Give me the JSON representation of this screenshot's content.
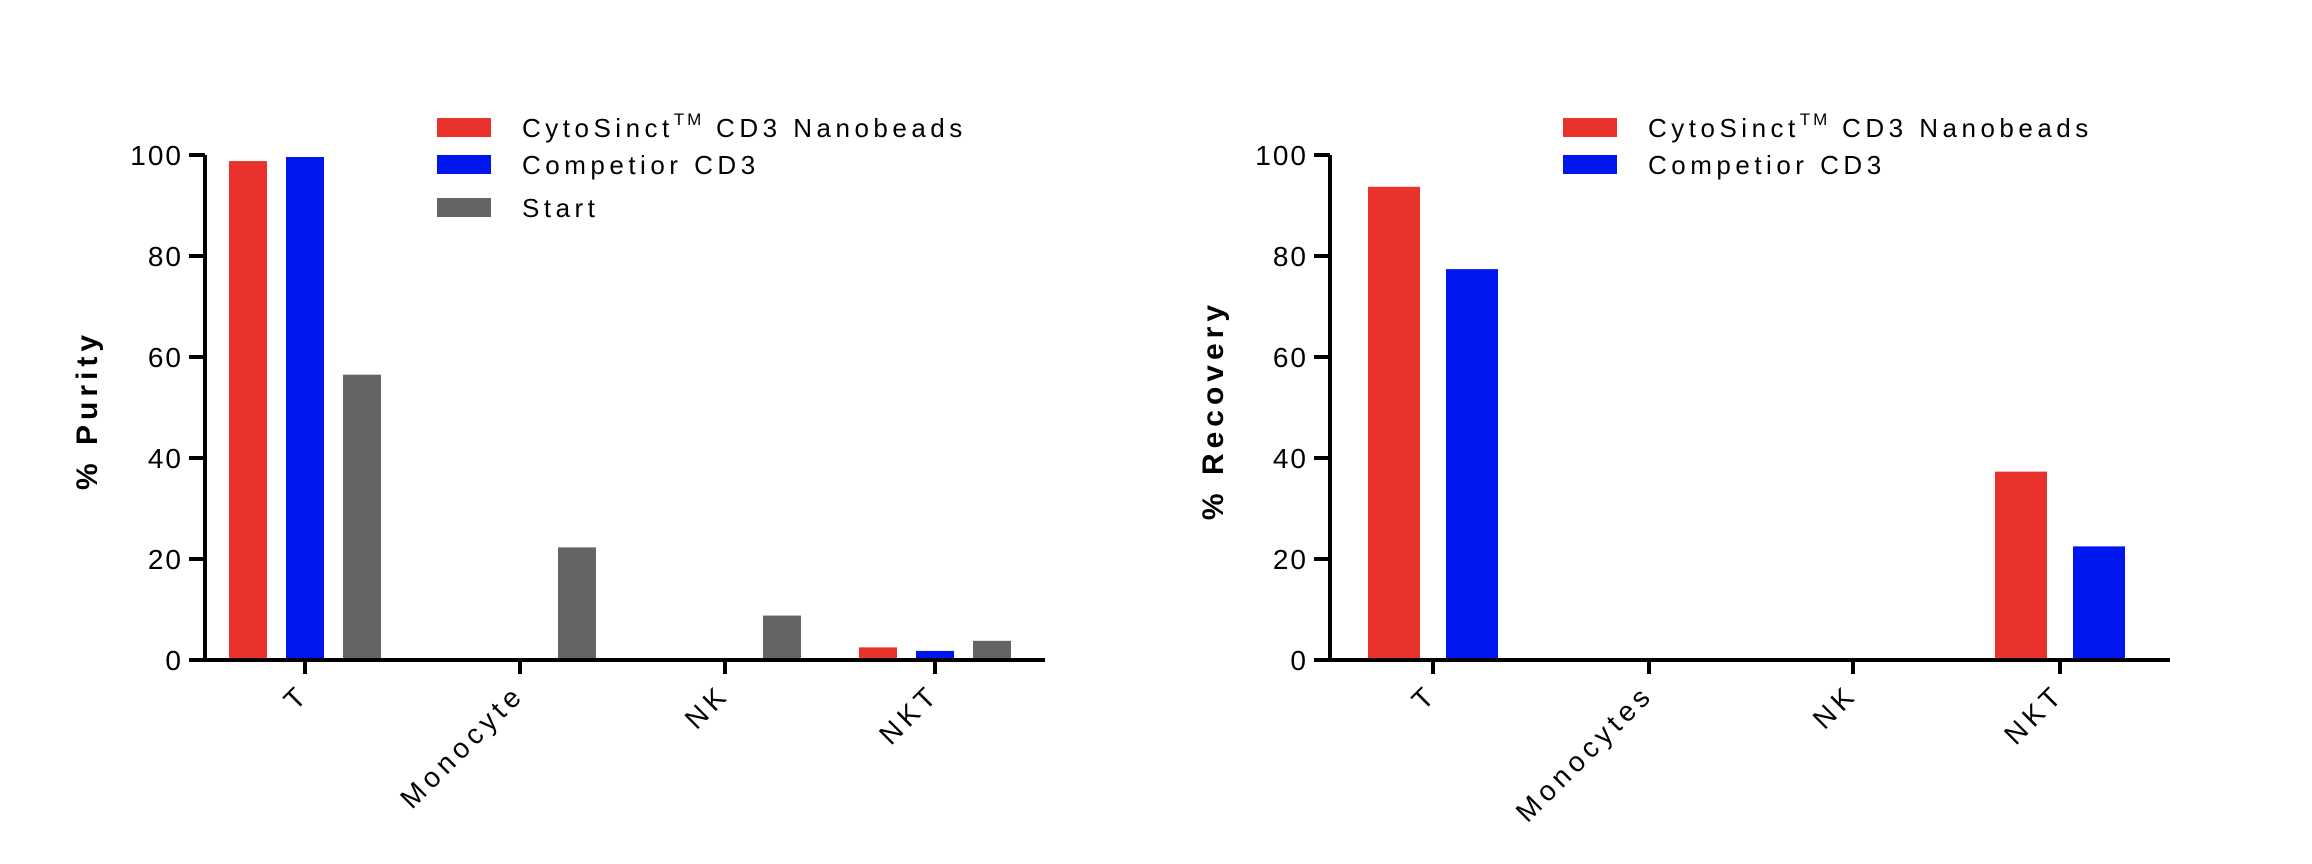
{
  "chart_data": [
    {
      "type": "bar",
      "title": "",
      "xlabel": "",
      "ylabel": "% Purity",
      "ylim": [
        0,
        100
      ],
      "yticks": [
        0,
        20,
        40,
        60,
        80,
        100
      ],
      "grid": false,
      "legend_position": "top-right",
      "categories": [
        "T",
        "Monocyte",
        "NK",
        "NKT"
      ],
      "series": [
        {
          "name": "CytoSinct",
          "name_superscript": "TM",
          "name_suffix": " CD3 Nanobeads",
          "color": "#e8322b",
          "values": [
            98.8,
            0,
            0,
            2.5
          ]
        },
        {
          "name": "Competior CD3",
          "color": "#0016ef",
          "values": [
            99.6,
            0,
            0,
            1.8
          ]
        },
        {
          "name": "Start",
          "color": "#646464",
          "values": [
            56.5,
            22.3,
            8.8,
            3.8
          ]
        }
      ]
    },
    {
      "type": "bar",
      "title": "",
      "xlabel": "",
      "ylabel": "% Recovery",
      "ylim": [
        0,
        100
      ],
      "yticks": [
        0,
        20,
        40,
        60,
        80,
        100
      ],
      "grid": false,
      "legend_position": "top-right",
      "categories": [
        "T",
        "Monocytes",
        "NK",
        "NKT"
      ],
      "series": [
        {
          "name": "CytoSinct",
          "name_superscript": "TM",
          "name_suffix": " CD3 Nanobeads",
          "color": "#e8322b",
          "values": [
            93.7,
            0.4,
            0,
            37.3
          ]
        },
        {
          "name": "Competior CD3",
          "color": "#0016ef",
          "values": [
            77.4,
            0.2,
            0,
            22.5
          ]
        }
      ]
    }
  ]
}
